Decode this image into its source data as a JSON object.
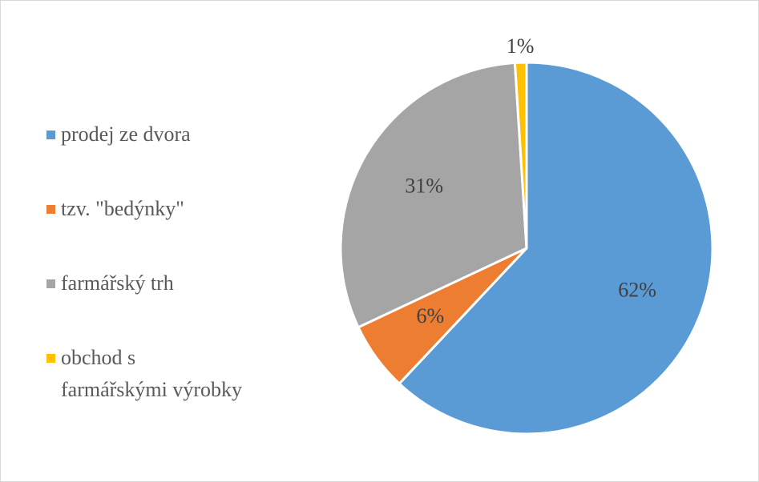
{
  "chart_data": {
    "type": "pie",
    "categories": [
      "prodej ze dvora",
      "tzv. \"bedýnky\"",
      "farmářský trh",
      "obchod s farmářskými výrobky"
    ],
    "values": [
      62,
      6,
      31,
      1
    ],
    "value_labels": [
      "62%",
      "6%",
      "31%",
      "1%"
    ],
    "colors": [
      "#5b9bd5",
      "#ed7d31",
      "#a5a5a5",
      "#ffc000"
    ],
    "legend": "left"
  }
}
